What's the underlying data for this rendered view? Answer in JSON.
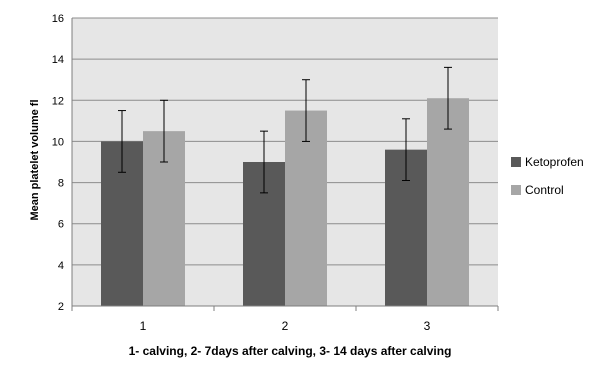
{
  "chart_data": {
    "type": "bar",
    "xlabel": "1- calving, 2- 7days after calving, 3- 14 days after calving",
    "ylabel": "Mean platelet volume fl",
    "categories": [
      "1",
      "2",
      "3"
    ],
    "ylim": [
      2,
      16
    ],
    "yticks": [
      2,
      4,
      6,
      8,
      10,
      12,
      14,
      16
    ],
    "grid": true,
    "legend_position": "right",
    "series": [
      {
        "name": "Ketoprofen",
        "color": "#595959",
        "values": [
          10.0,
          9.0,
          9.6
        ],
        "errors": [
          1.5,
          1.5,
          1.5
        ]
      },
      {
        "name": "Control",
        "color": "#a6a6a6",
        "values": [
          10.5,
          11.5,
          12.1
        ],
        "errors": [
          1.5,
          1.5,
          1.5
        ]
      }
    ]
  }
}
